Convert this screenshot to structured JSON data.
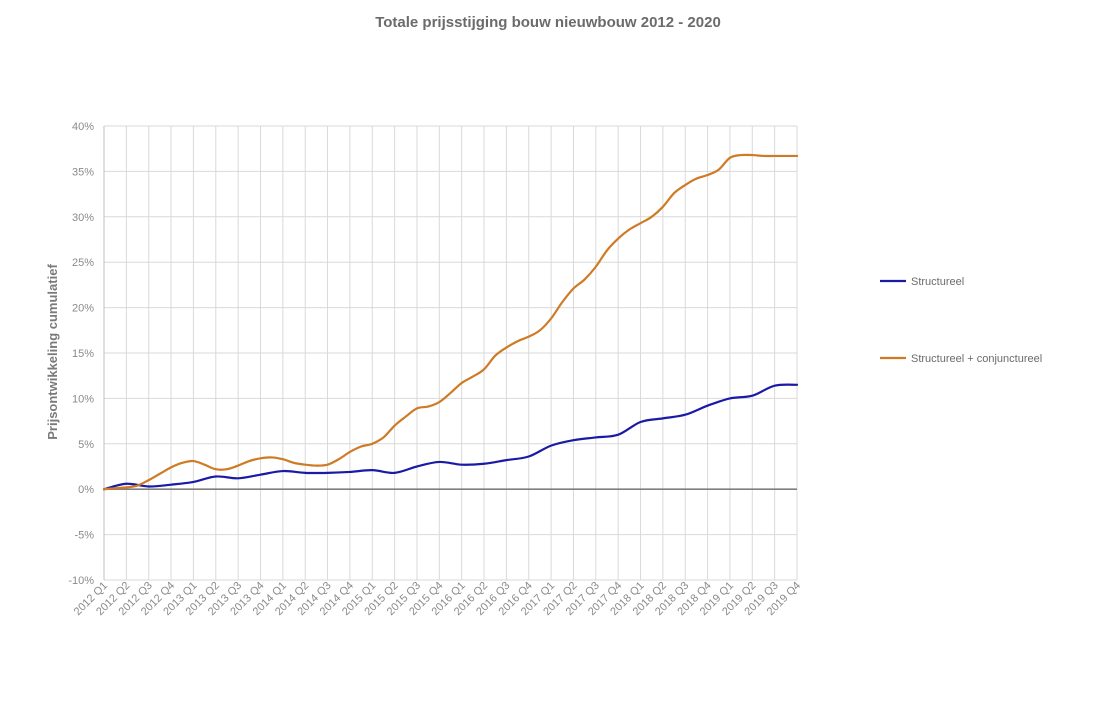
{
  "chart_data": {
    "type": "line",
    "title": "Totale prijsstijging bouw nieuwbouw 2012 - 2020",
    "xlabel": "",
    "ylabel": "Prijsontwikkeling cumulatief",
    "ylim": [
      -10,
      40
    ],
    "yticks": [
      "-10%",
      "-5%",
      "0%",
      "5%",
      "10%",
      "15%",
      "20%",
      "25%",
      "30%",
      "35%",
      "40%"
    ],
    "grid": true,
    "legend_position": "right",
    "categories": [
      "2012 Q1",
      "2012 Q2",
      "2012 Q3",
      "2012 Q4",
      "2013 Q1",
      "2013 Q2",
      "2013 Q3",
      "2013 Q4",
      "2014 Q1",
      "2014 Q2",
      "2014 Q3",
      "2014 Q4",
      "2015 Q1",
      "2015 Q2",
      "2015 Q3",
      "2015 Q4",
      "2016 Q1",
      "2016 Q2",
      "2016 Q3",
      "2016 Q4",
      "2017 Q1",
      "2017 Q2",
      "2017 Q3",
      "2017 Q4",
      "2018 Q1",
      "2018 Q2",
      "2018 Q3",
      "2018 Q4",
      "2019 Q1",
      "2019 Q2",
      "2019 Q3",
      "2019 Q4"
    ],
    "x_positions": [
      0,
      1,
      2,
      3,
      4,
      5,
      6,
      7,
      8,
      9,
      10,
      11,
      12,
      13,
      14,
      15,
      16,
      17,
      18,
      19,
      20,
      21,
      22,
      23,
      24,
      25,
      26,
      27,
      28,
      29,
      30,
      31
    ],
    "series": [
      {
        "name": "Structureel",
        "color": "#1a1aa6",
        "x": [
          0,
          1,
          2,
          3,
          4,
          5,
          6,
          7,
          8,
          9,
          10,
          11,
          12,
          13,
          14,
          15,
          16,
          17,
          18,
          19,
          20,
          21,
          22,
          23,
          24,
          25,
          26,
          27,
          28,
          29,
          30,
          31
        ],
        "values": [
          0.0,
          0.6,
          0.3,
          0.5,
          0.8,
          1.4,
          1.2,
          1.6,
          2.0,
          1.8,
          1.8,
          1.9,
          2.1,
          1.8,
          2.5,
          3.0,
          2.7,
          2.8,
          3.2,
          3.6,
          4.8,
          5.4,
          5.7,
          6.0,
          7.4,
          7.8,
          8.2,
          9.2,
          10.0,
          10.3,
          11.4,
          11.5
        ]
      },
      {
        "name": "Structureel + conjunctureel",
        "color": "#cf7a24",
        "x": [
          0,
          1,
          1.5,
          2,
          2.5,
          3,
          3.5,
          4,
          4.5,
          5,
          5.5,
          6,
          6.5,
          7,
          7.5,
          8,
          8.5,
          9,
          9.5,
          10,
          10.5,
          11,
          11.5,
          12,
          12.5,
          13,
          13.5,
          14,
          14.5,
          15,
          15.5,
          16,
          16.5,
          17,
          17.5,
          18,
          18.5,
          19,
          19.5,
          20,
          20.5,
          21,
          21.5,
          22,
          22.5,
          23,
          23.5,
          24,
          24.5,
          25,
          25.5,
          26,
          26.5,
          27,
          27.5,
          28,
          28.5,
          29,
          29.5,
          30,
          30.5,
          31
        ],
        "values": [
          0.0,
          0.2,
          0.4,
          1.0,
          1.7,
          2.4,
          2.9,
          3.1,
          2.7,
          2.2,
          2.2,
          2.6,
          3.1,
          3.4,
          3.5,
          3.3,
          2.9,
          2.7,
          2.6,
          2.7,
          3.3,
          4.1,
          4.7,
          5.0,
          5.7,
          7.0,
          8.0,
          8.9,
          9.1,
          9.6,
          10.6,
          11.7,
          12.4,
          13.2,
          14.7,
          15.6,
          16.3,
          16.8,
          17.5,
          18.8,
          20.6,
          22.1,
          23.1,
          24.5,
          26.3,
          27.6,
          28.6,
          29.3,
          30.0,
          31.1,
          32.6,
          33.5,
          34.2,
          34.6,
          35.2,
          36.5,
          36.8,
          36.8,
          36.7,
          36.7,
          36.7,
          36.7
        ]
      }
    ]
  }
}
